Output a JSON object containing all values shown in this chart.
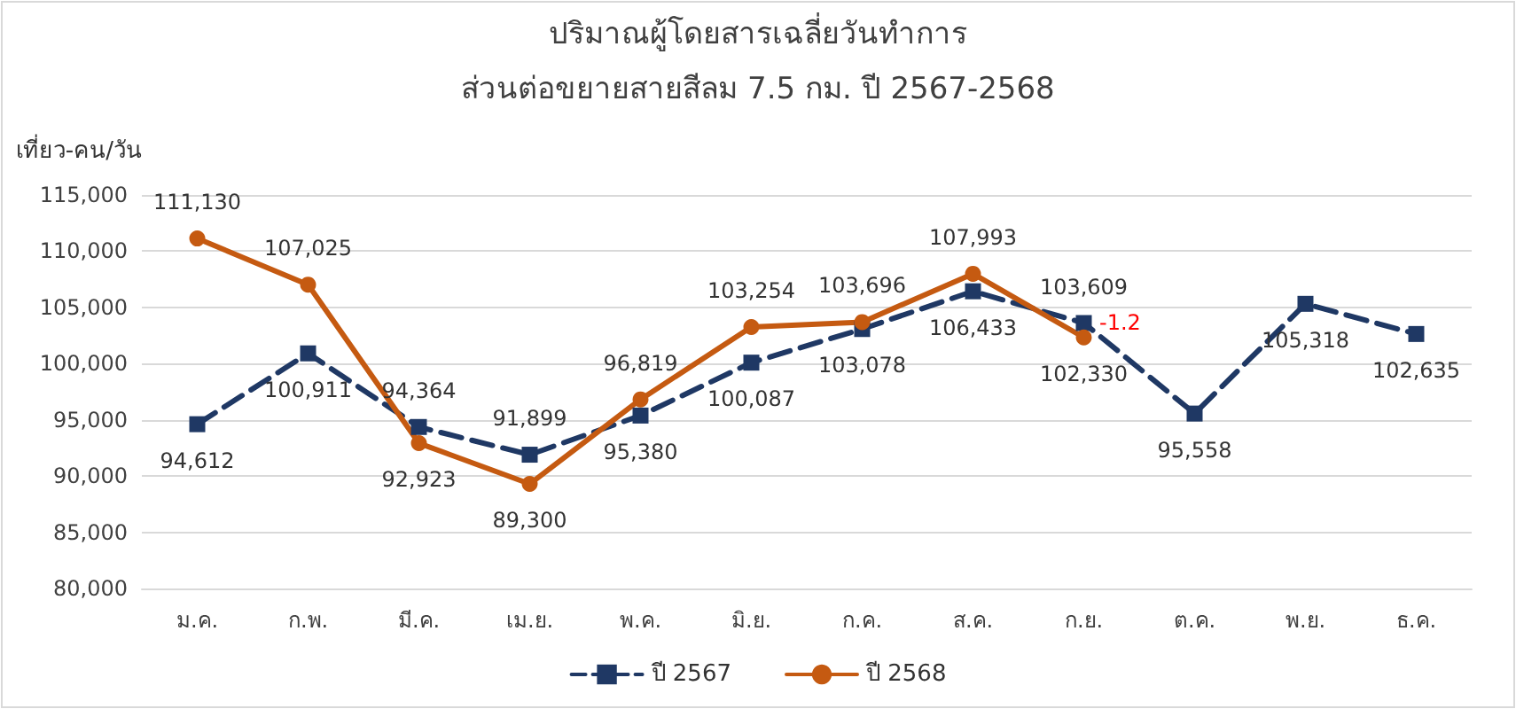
{
  "chart_data": {
    "type": "line",
    "title": "ปริมาณผู้โดยสารเฉลี่ยวันทำการ",
    "subtitle": "ส่วนต่อขยายสายสีลม 7.5 กม. ปี 2567-2568",
    "ylabel": "เที่ยว-คน/วัน",
    "categories": [
      "ม.ค.",
      "ก.พ.",
      "มี.ค.",
      "เม.ย.",
      "พ.ค.",
      "มิ.ย.",
      "ก.ค.",
      "ส.ค.",
      "ก.ย.",
      "ต.ค.",
      "พ.ย.",
      "ธ.ค."
    ],
    "series": [
      {
        "name": "ปี 2567",
        "color": "#1f3864",
        "marker": "square",
        "line_style": "dashed",
        "values": [
          94612,
          100911,
          94364,
          91899,
          95380,
          100087,
          103078,
          106433,
          103609,
          95558,
          105318,
          102635
        ],
        "value_labels": [
          "94,612",
          "100,911",
          "94,364",
          "91,899",
          "95,380",
          "100,087",
          "103,078",
          "106,433",
          "103,609",
          "95,558",
          "105,318",
          "102,635"
        ]
      },
      {
        "name": "ปี 2568",
        "color": "#c55a11",
        "marker": "circle",
        "line_style": "solid",
        "values": [
          111130,
          107025,
          92923,
          89300,
          96819,
          103254,
          103696,
          107993,
          102330,
          null,
          null,
          null
        ],
        "value_labels": [
          "111,130",
          "107,025",
          "92,923",
          "89,300",
          "96,819",
          "103,254",
          "103,696",
          "107,993",
          "102,330",
          null,
          null,
          null
        ]
      }
    ],
    "ylim": [
      80000,
      115000
    ],
    "yticks": [
      {
        "value": 80000,
        "label": "80,000"
      },
      {
        "value": 85000,
        "label": "85,000"
      },
      {
        "value": 90000,
        "label": "90,000"
      },
      {
        "value": 95000,
        "label": "95,000"
      },
      {
        "value": 100000,
        "label": "100,000"
      },
      {
        "value": 105000,
        "label": "105,000"
      },
      {
        "value": 110000,
        "label": "110,000"
      },
      {
        "value": 115000,
        "label": "115,000"
      }
    ],
    "grid": "y",
    "legend": "bottom",
    "annotations": [
      "-1.2"
    ]
  }
}
